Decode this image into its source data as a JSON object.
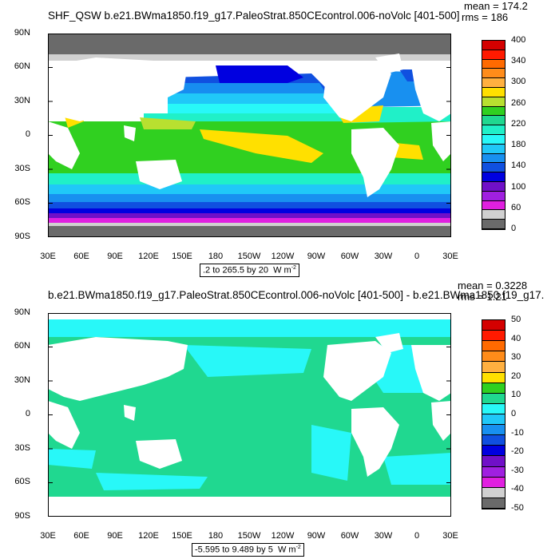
{
  "panel_top": {
    "title": "SHF_QSW b.e21.BWma1850.f19_g17.PaleoStrat.850CEcontrol.006-noVolc [401-500]",
    "mean_label": "mean = 174.2",
    "rms_label": "rms = 186",
    "range_label": ".2 to 265.5 by 20",
    "units": "W m",
    "units_exp": "-2",
    "colorbar": {
      "labels": [
        "400",
        "340",
        "300",
        "260",
        "220",
        "180",
        "140",
        "100",
        "60",
        "0"
      ],
      "colors": [
        "#d40000",
        "#ff1a00",
        "#ff6a00",
        "#ff8c1a",
        "#ffb040",
        "#ffe000",
        "#b8e030",
        "#30d020",
        "#20d890",
        "#20f0c8",
        "#28f8f8",
        "#20c8f8",
        "#1890f0",
        "#1050e0",
        "#0000e0",
        "#7010c8",
        "#a020e0",
        "#e020e0",
        "#d0d0d0",
        "#6a6a6a"
      ]
    }
  },
  "panel_bottom": {
    "title": "b.e21.BWma1850.f19_g17.PaleoStrat.850CEcontrol.006-noVolc [401-500] - b.e21.BWma1850.f19_g17.",
    "mean_label": "mean = 0.3228",
    "rms_label": "rms = 1.21",
    "range_label": "-5.595 to 9.489 by 5",
    "units": "W m",
    "units_exp": "-2",
    "colorbar": {
      "labels": [
        "50",
        "40",
        "30",
        "20",
        "10",
        "0",
        "-10",
        "-20",
        "-30",
        "-40",
        "-50"
      ],
      "colors": [
        "#d40000",
        "#ff1a00",
        "#ff6a00",
        "#ff8c1a",
        "#ffb040",
        "#ffe000",
        "#30d020",
        "#20d890",
        "#28f8f8",
        "#20c8f8",
        "#1890f0",
        "#1050e0",
        "#0000e0",
        "#7010c8",
        "#a020e0",
        "#e020e0",
        "#d0d0d0",
        "#6a6a6a"
      ]
    }
  },
  "axes": {
    "y_labels": [
      "90N",
      "60N",
      "30N",
      "0",
      "30S",
      "60S",
      "90S"
    ],
    "x_labels": [
      "30E",
      "60E",
      "90E",
      "120E",
      "150E",
      "180",
      "150W",
      "120W",
      "90W",
      "60W",
      "30W",
      "0",
      "30E"
    ]
  },
  "colors": {
    "land": "#ffffff",
    "sea_ice": "#6a6a6a",
    "frame": "#000000"
  }
}
